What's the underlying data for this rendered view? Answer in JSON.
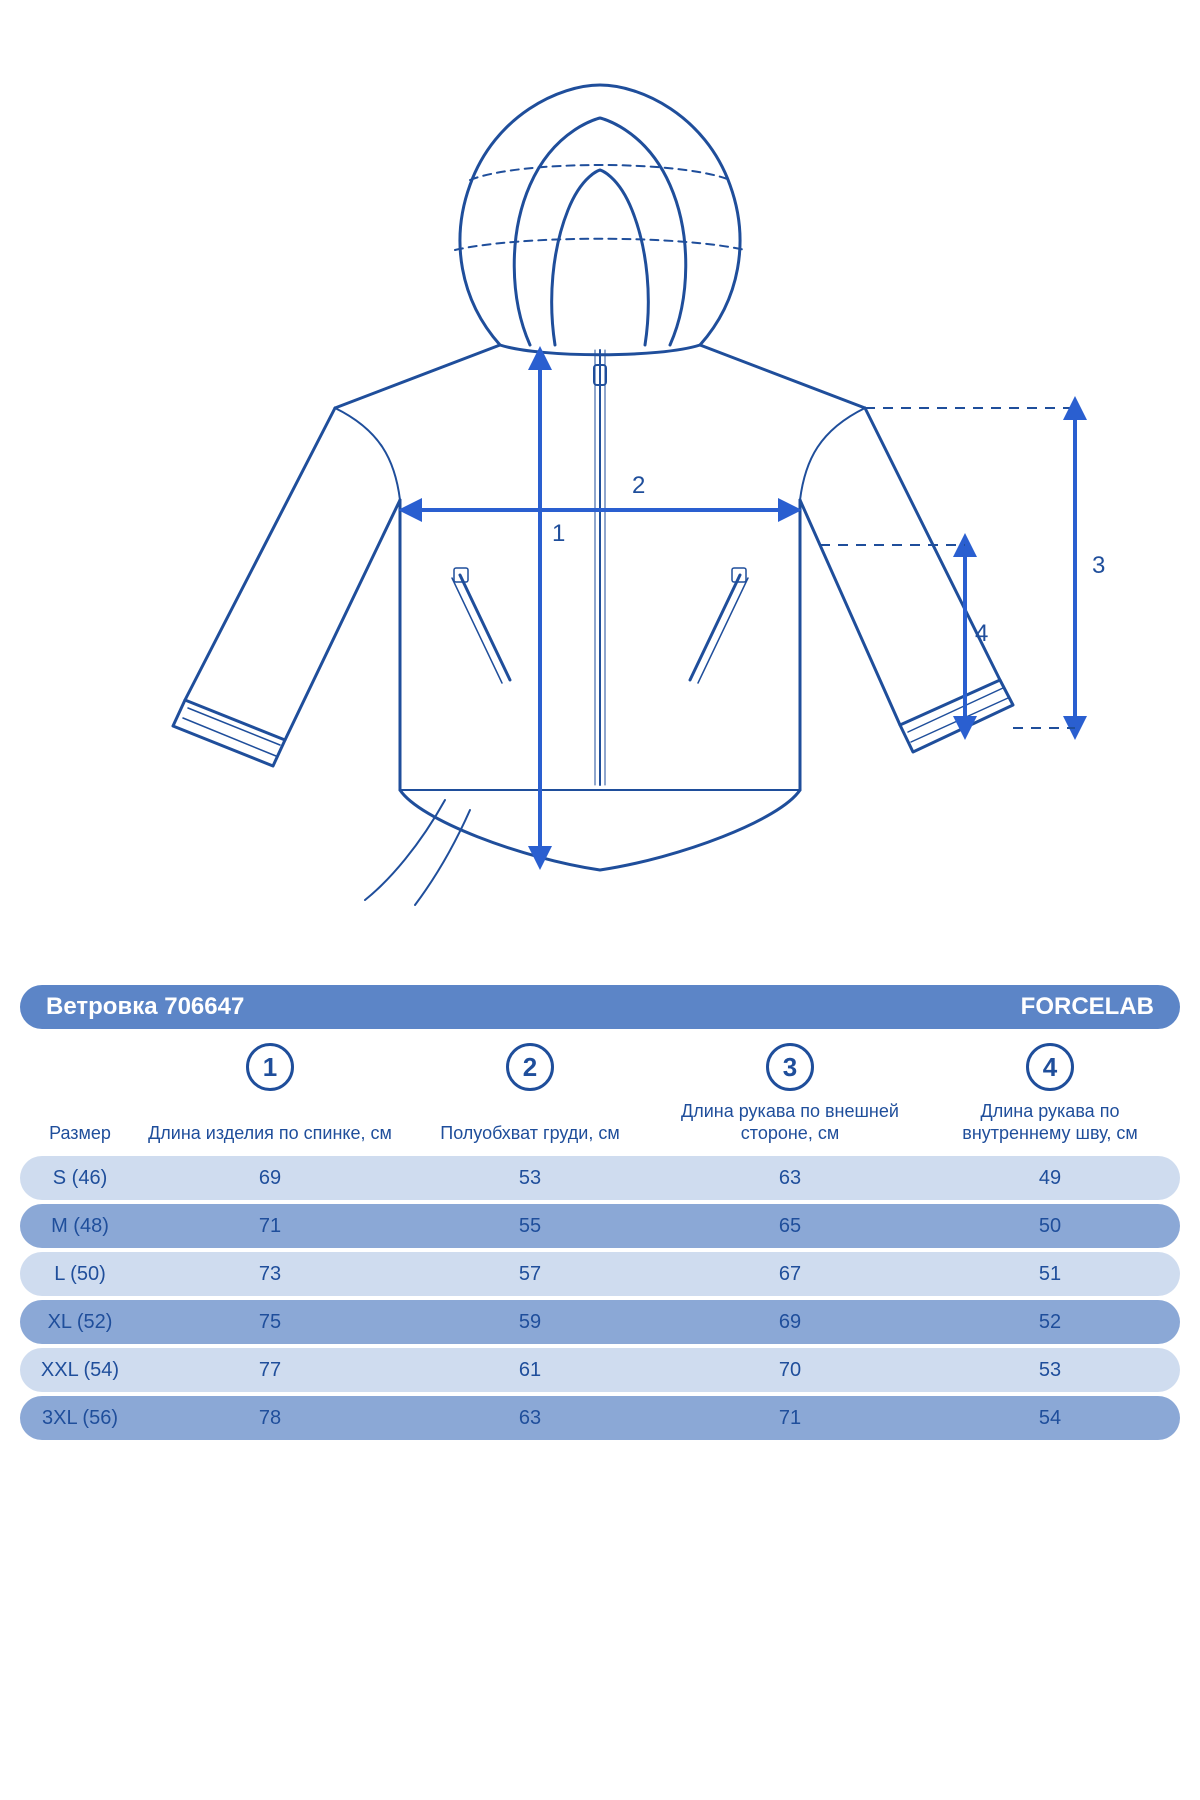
{
  "colors": {
    "primary": "#1f4e9b",
    "arrow_fill": "#2a5fd0",
    "title_bar_bg": "#5c85c7",
    "row_light": "#cfdcef",
    "row_dark": "#8ba8d6",
    "outline": "#1f4e9b",
    "background": "#ffffff"
  },
  "diagram": {
    "dimension_labels": [
      "1",
      "2",
      "3",
      "4"
    ]
  },
  "product": {
    "title": "Ветровка 706647",
    "brand": "FORCELAB"
  },
  "table": {
    "column_markers": [
      "1",
      "2",
      "3",
      "4"
    ],
    "headers": {
      "size": "Размер",
      "cols": [
        "Длина изделия по спинке, см",
        "Полуобхват груди, см",
        "Длина рукава по внешней стороне, см",
        "Длина рукава по внутреннему шву, см"
      ]
    },
    "rows": [
      {
        "size": "S (46)",
        "values": [
          69,
          53,
          63,
          49
        ]
      },
      {
        "size": "M (48)",
        "values": [
          71,
          55,
          65,
          50
        ]
      },
      {
        "size": "L (50)",
        "values": [
          73,
          57,
          67,
          51
        ]
      },
      {
        "size": "XL (52)",
        "values": [
          75,
          59,
          69,
          52
        ]
      },
      {
        "size": "XXL (54)",
        "values": [
          77,
          61,
          70,
          53
        ]
      },
      {
        "size": "3XL (56)",
        "values": [
          78,
          63,
          71,
          54
        ]
      }
    ]
  },
  "typography": {
    "title_fontsize": 24,
    "header_fontsize": 18,
    "cell_fontsize": 20,
    "marker_fontsize": 26
  }
}
